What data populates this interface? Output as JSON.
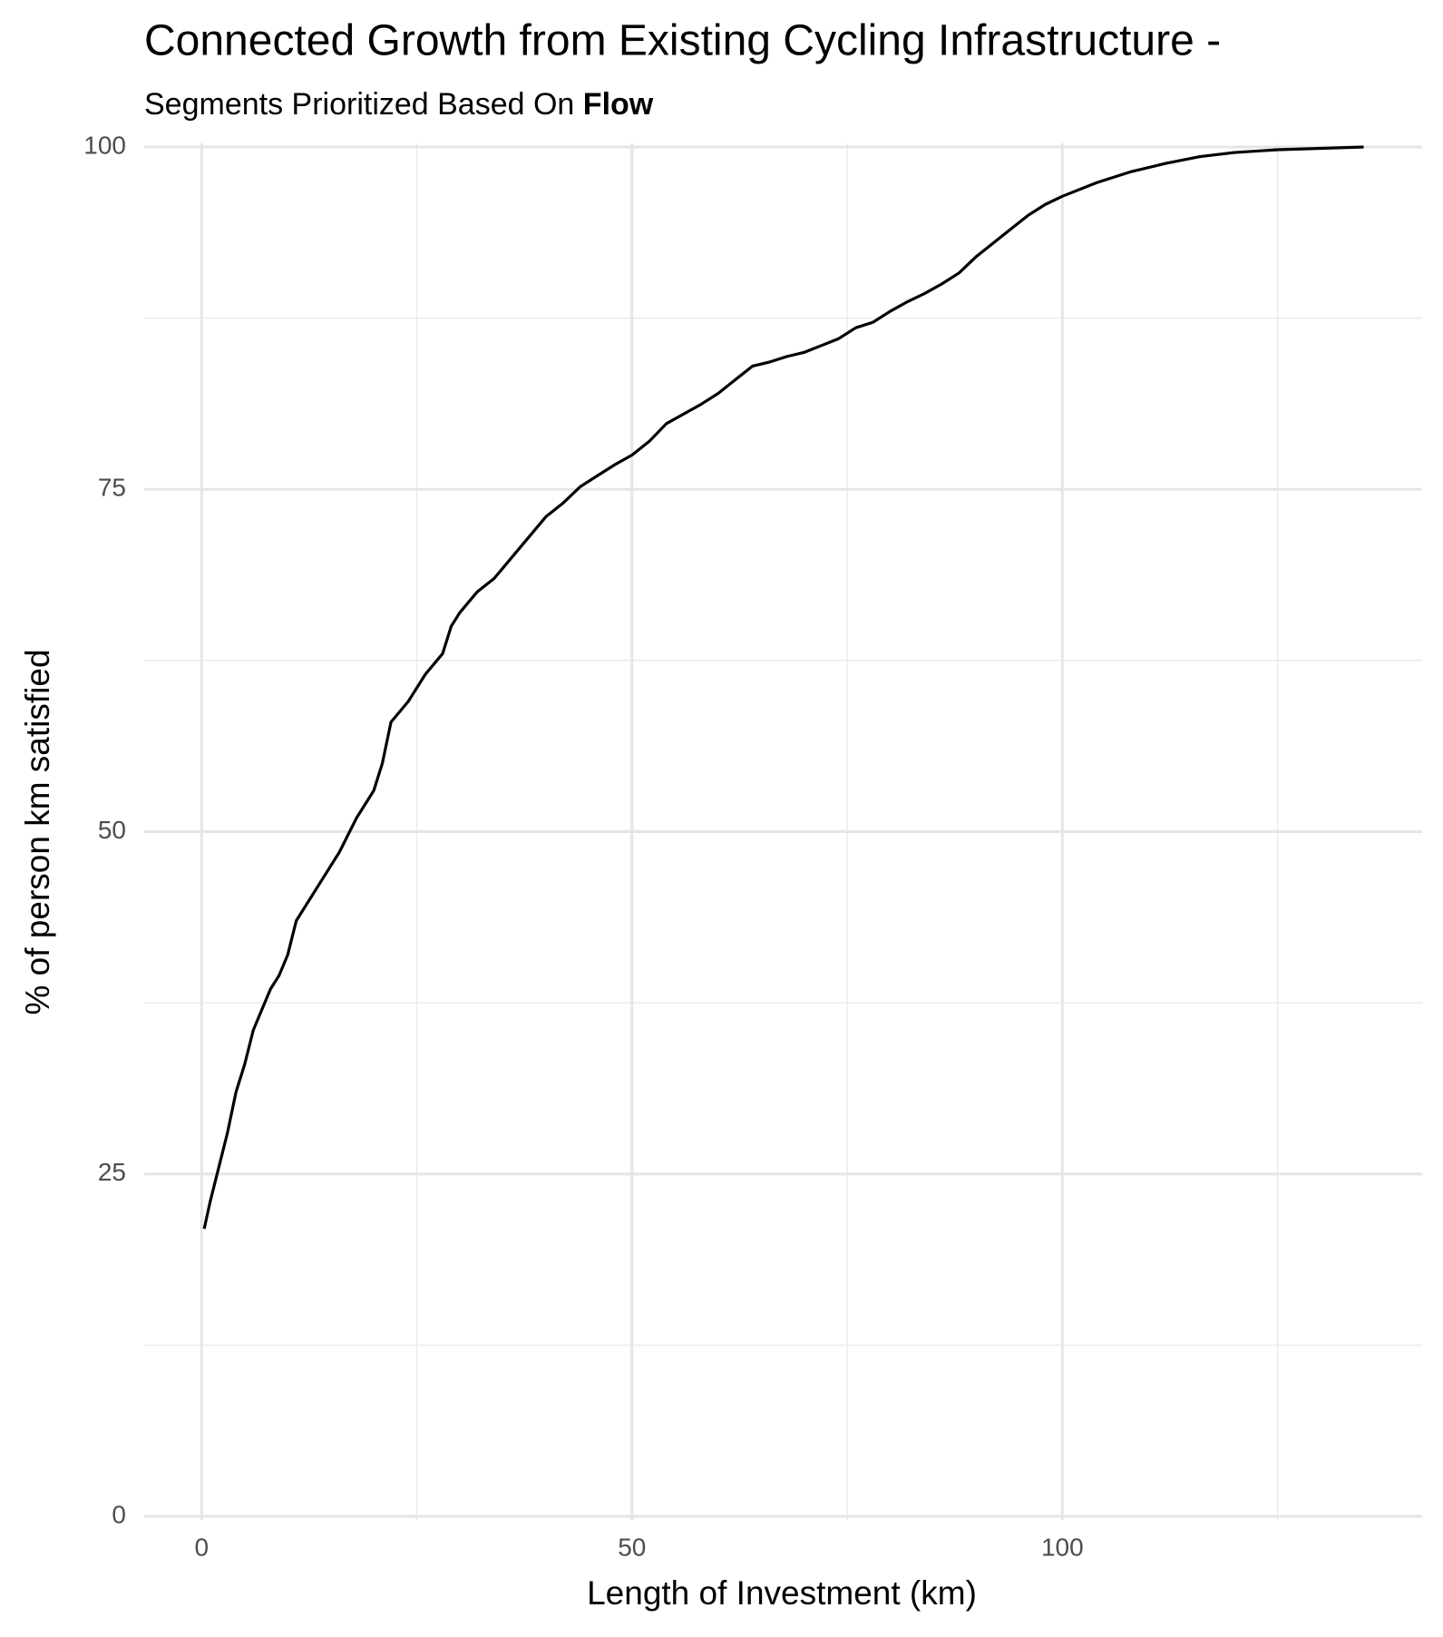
{
  "chart_data": {
    "type": "line",
    "title": "Connected Growth from Existing Cycling Infrastructure -",
    "subtitle": "Segments Prioritized Based On",
    "subtitle_emphasis": "Flow",
    "x_label": "Length of Investment (km)",
    "y_label": "% of person km satisfied",
    "x": [
      0.3,
      1,
      2,
      3,
      4,
      5,
      6,
      7,
      8,
      9,
      10,
      11,
      12,
      14,
      16,
      18,
      20,
      21,
      22,
      24,
      26,
      28,
      29,
      30,
      32,
      34,
      36,
      38,
      40,
      42,
      44,
      46,
      48,
      50,
      52,
      54,
      56,
      58,
      60,
      62,
      64,
      66,
      68,
      70,
      72,
      74,
      76,
      78,
      80,
      82,
      84,
      86,
      88,
      90,
      92,
      94,
      96,
      98,
      100,
      104,
      108,
      112,
      116,
      120,
      125,
      130,
      135
    ],
    "values": [
      21,
      23,
      25.5,
      28,
      31,
      33,
      35.5,
      37,
      38.5,
      39.5,
      41,
      43.5,
      44.5,
      46.5,
      48.5,
      51,
      53,
      55,
      58,
      59.5,
      61.5,
      63,
      65,
      66,
      67.5,
      68.5,
      70,
      71.5,
      73,
      74,
      75.2,
      76,
      76.8,
      77.5,
      78.5,
      79.8,
      80.5,
      81.2,
      82,
      83,
      84,
      84.3,
      84.7,
      85,
      85.5,
      86,
      86.8,
      87.2,
      88,
      88.7,
      89.3,
      90,
      90.8,
      92,
      93,
      94,
      95,
      95.8,
      96.4,
      97.4,
      98.2,
      98.8,
      99.3,
      99.6,
      99.8,
      99.9,
      100
    ],
    "color": "#000000",
    "xlim": [
      -6.67,
      141.8
    ],
    "ylim": [
      0,
      100
    ],
    "xticks": [
      0,
      50,
      100
    ],
    "yticks": [
      0,
      25,
      50,
      75,
      100
    ],
    "x_minor_ticks": [
      25,
      75,
      125
    ],
    "y_minor_ticks": [
      12.5,
      37.5,
      62.5,
      87.5
    ],
    "grid": true
  }
}
